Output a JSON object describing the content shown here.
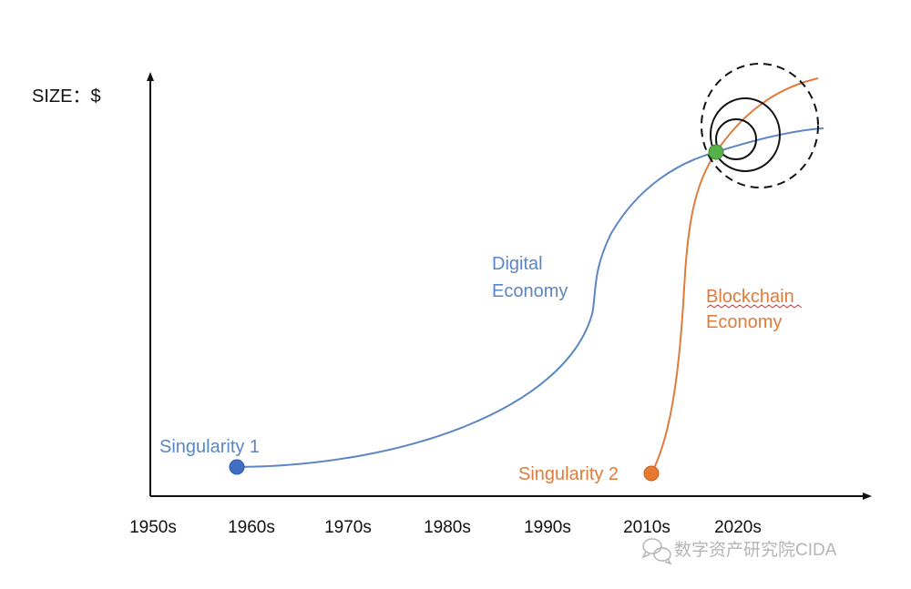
{
  "axis": {
    "y_title": "SIZE：$"
  },
  "x_ticks": [
    "1950s",
    "1960s",
    "1970s",
    "1980s",
    "1990s",
    "2010s",
    "2020s"
  ],
  "curves": {
    "digital": {
      "label_line1": "Digital",
      "label_line2": "Economy",
      "color": "#5b86c4"
    },
    "blockchain": {
      "label_line1": "Blockchain",
      "label_line2": "Economy",
      "color": "#e07b3a"
    }
  },
  "points": {
    "singularity1": {
      "label": "Singularity 1",
      "color": "#3f6fc0"
    },
    "singularity2": {
      "label": "Singularity 2",
      "color": "#e6782f"
    },
    "intersection": {
      "color": "#58b04a"
    }
  },
  "watermark": {
    "text": "数字资产研究院CIDA",
    "icon": "chat-bubbles-icon"
  }
}
